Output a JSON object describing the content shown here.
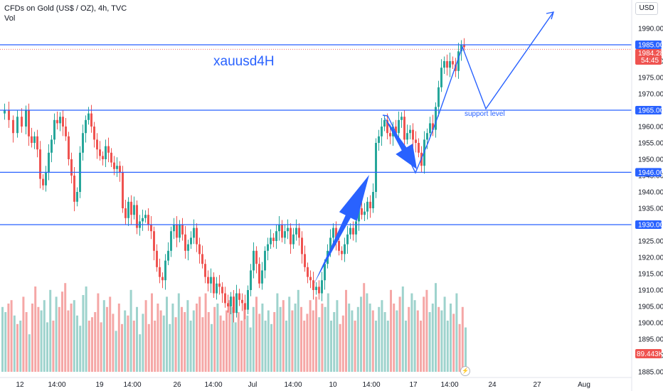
{
  "header": {
    "title": "CFDs on Gold (US$ / OZ), 4h, TVC",
    "subtitle": "Vol"
  },
  "currency_button": "USD",
  "annotations": {
    "label": "xauusd4H",
    "support_label": "support level",
    "lightning_icon": "lightning-icon"
  },
  "colors": {
    "up": "#26a69a",
    "down": "#ef5350",
    "up_volume": "#9ed3cd",
    "down_volume": "#f5a7a6",
    "drawing": "#2962ff",
    "price_badge": "#ef5350"
  },
  "chart_data": {
    "type": "candlestick",
    "title": "CFDs on Gold (US$ / OZ), 4h, TVC",
    "ylim": [
      1885,
      1995
    ],
    "y_ticks": [
      1885,
      1890,
      1895,
      1900,
      1905,
      1910,
      1915,
      1920,
      1925,
      1930,
      1935,
      1940,
      1945,
      1950,
      1955,
      1960,
      1965,
      1970,
      1975,
      1980,
      1985,
      1990
    ],
    "x_ticks": [
      "12",
      "14:00",
      "19",
      "14:00",
      "26",
      "14:00",
      "Jul",
      "14:00",
      "10",
      "14:00",
      "17",
      "14:00",
      "24",
      "27",
      "Aug"
    ],
    "horizontal_levels": [
      {
        "label": "1985.00",
        "value": 1985.0
      },
      {
        "label": "1965.00",
        "value": 1965.0
      },
      {
        "label": "1946.00",
        "value": 1946.0
      },
      {
        "label": "1930.00",
        "value": 1930.0
      }
    ],
    "current_price": {
      "label": "1984.28",
      "value": 1984.28,
      "countdown": "54:45"
    },
    "volume_badge": "89.443K",
    "price_path": [
      [
        0,
        1964
      ],
      [
        6,
        1965
      ],
      [
        12,
        1962
      ],
      [
        18,
        1958
      ],
      [
        24,
        1963
      ],
      [
        30,
        1960
      ],
      [
        36,
        1965
      ],
      [
        40,
        1957
      ],
      [
        44,
        1955
      ],
      [
        48,
        1957
      ],
      [
        52,
        1953
      ],
      [
        56,
        1944
      ],
      [
        60,
        1942
      ],
      [
        64,
        1946
      ],
      [
        68,
        1952
      ],
      [
        72,
        1956
      ],
      [
        76,
        1962
      ],
      [
        80,
        1961
      ],
      [
        84,
        1963
      ],
      [
        88,
        1960
      ],
      [
        92,
        1957
      ],
      [
        96,
        1950
      ],
      [
        100,
        1945
      ],
      [
        104,
        1937
      ],
      [
        108,
        1940
      ],
      [
        112,
        1952
      ],
      [
        116,
        1958
      ],
      [
        120,
        1962
      ],
      [
        124,
        1964
      ],
      [
        128,
        1960
      ],
      [
        132,
        1956
      ],
      [
        136,
        1953
      ],
      [
        140,
        1951
      ],
      [
        144,
        1950
      ],
      [
        148,
        1954
      ],
      [
        152,
        1952
      ],
      [
        156,
        1949
      ],
      [
        160,
        1947
      ],
      [
        164,
        1948
      ],
      [
        168,
        1946
      ],
      [
        172,
        1935
      ],
      [
        176,
        1932
      ],
      [
        180,
        1937
      ],
      [
        184,
        1933
      ],
      [
        188,
        1936
      ],
      [
        192,
        1929
      ],
      [
        196,
        1931
      ],
      [
        200,
        1932
      ],
      [
        204,
        1933
      ],
      [
        208,
        1930
      ],
      [
        212,
        1928
      ],
      [
        216,
        1922
      ],
      [
        220,
        1917
      ],
      [
        224,
        1914
      ],
      [
        228,
        1913
      ],
      [
        232,
        1919
      ],
      [
        236,
        1922
      ],
      [
        240,
        1928
      ],
      [
        244,
        1930
      ],
      [
        248,
        1926
      ],
      [
        252,
        1930
      ],
      [
        256,
        1927
      ],
      [
        260,
        1922
      ],
      [
        264,
        1924
      ],
      [
        268,
        1926
      ],
      [
        272,
        1929
      ],
      [
        276,
        1924
      ],
      [
        280,
        1921
      ],
      [
        284,
        1918
      ],
      [
        288,
        1914
      ],
      [
        292,
        1912
      ],
      [
        296,
        1914
      ],
      [
        300,
        1909
      ],
      [
        304,
        1912
      ],
      [
        308,
        1911
      ],
      [
        312,
        1909
      ],
      [
        316,
        1906
      ],
      [
        320,
        1905
      ],
      [
        324,
        1908
      ],
      [
        328,
        1903
      ],
      [
        332,
        1909
      ],
      [
        336,
        1907
      ],
      [
        340,
        1906
      ],
      [
        344,
        1904
      ],
      [
        348,
        1910
      ],
      [
        352,
        1916
      ],
      [
        356,
        1922
      ],
      [
        360,
        1918
      ],
      [
        364,
        1912
      ],
      [
        368,
        1916
      ],
      [
        372,
        1922
      ],
      [
        376,
        1924
      ],
      [
        380,
        1926
      ],
      [
        384,
        1925
      ],
      [
        388,
        1928
      ],
      [
        392,
        1930
      ],
      [
        396,
        1926
      ],
      [
        400,
        1928
      ],
      [
        404,
        1929
      ],
      [
        408,
        1924
      ],
      [
        412,
        1927
      ],
      [
        416,
        1929
      ],
      [
        420,
        1926
      ],
      [
        424,
        1921
      ],
      [
        428,
        1917
      ],
      [
        432,
        1914
      ],
      [
        436,
        1913
      ],
      [
        440,
        1910
      ],
      [
        444,
        1911
      ],
      [
        448,
        1909
      ],
      [
        452,
        1913
      ],
      [
        456,
        1918
      ],
      [
        460,
        1922
      ],
      [
        464,
        1926
      ],
      [
        468,
        1929
      ],
      [
        472,
        1925
      ],
      [
        476,
        1922
      ],
      [
        480,
        1921
      ],
      [
        484,
        1924
      ],
      [
        488,
        1927
      ],
      [
        492,
        1929
      ],
      [
        496,
        1927
      ],
      [
        500,
        1931
      ],
      [
        504,
        1935
      ],
      [
        508,
        1933
      ],
      [
        512,
        1934
      ],
      [
        516,
        1937
      ],
      [
        520,
        1935
      ],
      [
        524,
        1940
      ],
      [
        528,
        1955
      ],
      [
        532,
        1957
      ],
      [
        536,
        1960
      ],
      [
        540,
        1962
      ],
      [
        544,
        1958
      ],
      [
        548,
        1957
      ],
      [
        552,
        1960
      ],
      [
        556,
        1958
      ],
      [
        560,
        1962
      ],
      [
        564,
        1963
      ],
      [
        568,
        1956
      ],
      [
        572,
        1958
      ],
      [
        576,
        1959
      ],
      [
        580,
        1956
      ],
      [
        584,
        1955
      ],
      [
        588,
        1952
      ],
      [
        592,
        1948
      ],
      [
        596,
        1956
      ],
      [
        600,
        1958
      ],
      [
        604,
        1961
      ],
      [
        608,
        1959
      ],
      [
        612,
        1966
      ],
      [
        616,
        1972
      ],
      [
        620,
        1978
      ],
      [
        624,
        1980
      ],
      [
        628,
        1978
      ],
      [
        632,
        1980
      ],
      [
        636,
        1979
      ],
      [
        640,
        1977
      ],
      [
        644,
        1983
      ],
      [
        648,
        1985
      ],
      [
        652,
        1984.28
      ]
    ],
    "volume_heights": [
      38,
      35,
      40,
      42,
      33,
      28,
      30,
      44,
      35,
      22,
      40,
      50,
      38,
      36,
      42,
      29,
      48,
      30,
      44,
      38,
      47,
      52,
      36,
      40,
      42,
      33,
      27,
      45,
      50,
      30,
      32,
      35,
      46,
      29,
      42,
      38,
      44,
      34,
      24,
      40,
      28,
      36,
      33,
      48,
      30,
      38,
      22,
      34,
      42,
      28,
      46,
      30,
      40,
      36,
      33,
      44,
      28,
      40,
      32,
      46,
      38,
      35,
      42,
      30,
      36,
      40,
      44,
      32,
      46,
      35,
      28,
      38,
      40,
      33,
      30,
      36,
      42,
      38,
      29,
      35,
      30,
      40,
      33,
      26,
      38,
      44,
      34,
      40,
      30,
      36,
      28,
      35,
      46,
      38,
      42,
      30,
      44,
      36,
      40,
      48,
      38,
      30,
      34,
      42,
      36,
      44,
      32,
      40,
      38,
      46,
      30,
      35,
      42,
      28,
      33,
      48,
      40,
      36,
      30,
      38,
      44,
      52,
      46,
      40,
      36,
      30,
      38,
      42,
      35,
      30,
      48,
      40,
      36,
      44,
      50,
      30,
      38,
      46,
      42,
      36,
      30,
      44,
      48,
      35,
      40,
      52,
      38,
      36,
      44,
      30,
      40,
      34,
      46,
      28,
      38,
      26,
      24
    ],
    "drawings": {
      "up_arrow": [
        [
          441,
          400
        ],
        [
          519,
          246
        ]
      ],
      "down_arrow": [
        [
          539,
          163
        ],
        [
          586,
          238
        ]
      ],
      "projection": [
        [
          538,
          162
        ],
        [
          545,
          163
        ],
        [
          584,
          243
        ],
        [
          602,
          200
        ],
        [
          617,
          160
        ],
        [
          650,
          66
        ],
        [
          683,
          153
        ],
        [
          778,
          17
        ]
      ]
    },
    "grid": false,
    "legend": "none"
  }
}
